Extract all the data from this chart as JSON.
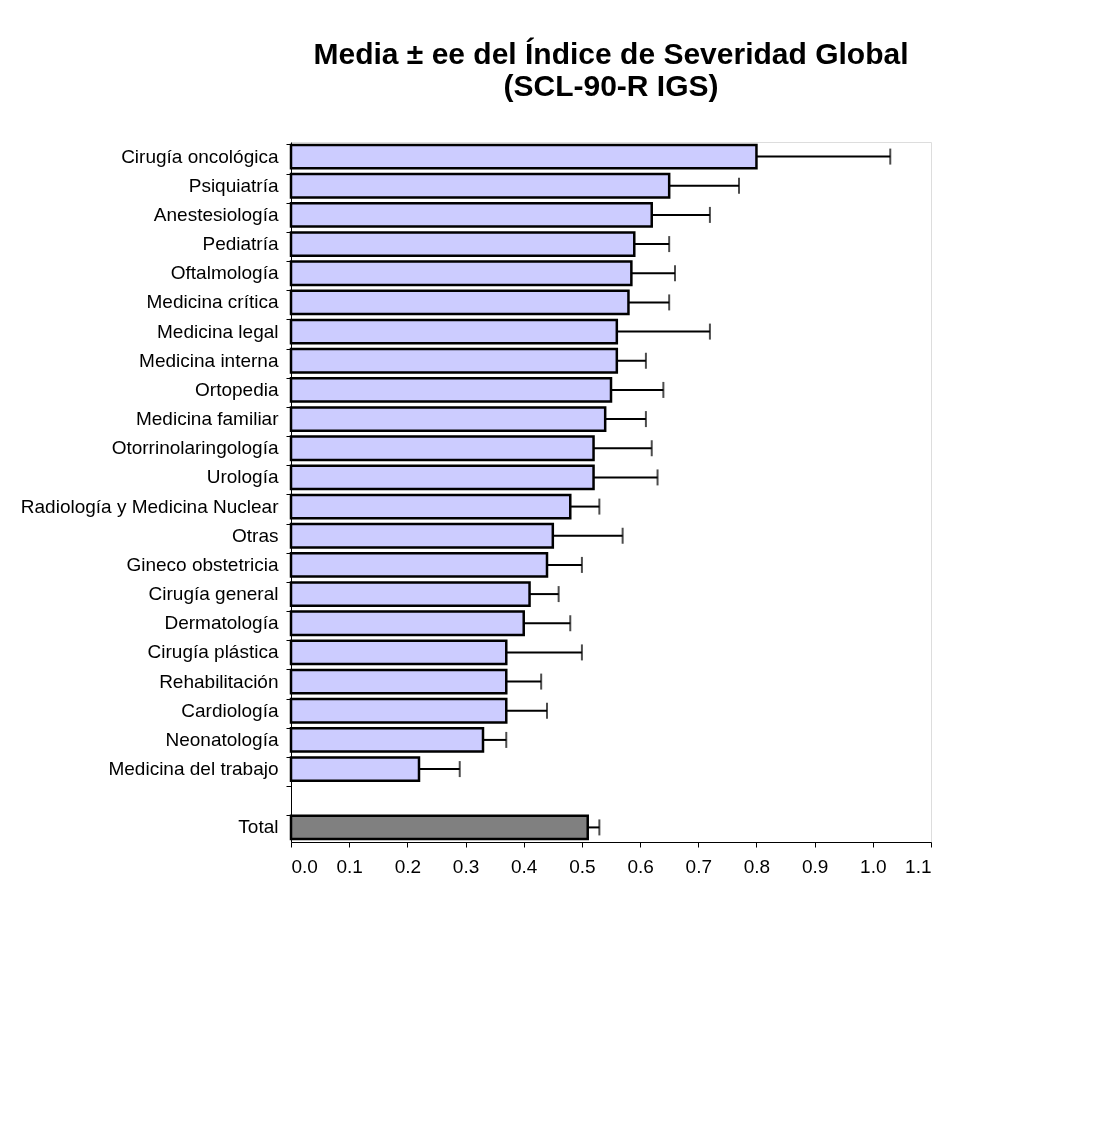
{
  "chart_data": {
    "type": "bar",
    "orientation": "horizontal",
    "title": "Media ± ee del Índice de Severidad Global\n(SCL-90-R     IGS)",
    "categories": [
      "Cirugía oncológica",
      "Psiquiatría",
      "Anestesiología",
      "Pediatría",
      "Oftalmología",
      "Medicina crítica",
      "Medicina legal",
      "Medicina interna",
      "Ortopedia",
      "Medicina familiar",
      "Otorrinolaringología",
      "Urología",
      "Radiología y Medicina Nuclear",
      "Otras",
      "Gineco obstetricia",
      "Cirugía general",
      "Dermatología",
      "Cirugía plástica",
      "Rehabilitación",
      "Cardiología",
      "Neonatología",
      "Medicina del trabajo",
      null,
      "Total"
    ],
    "values": [
      0.8,
      0.65,
      0.62,
      0.59,
      0.585,
      0.58,
      0.56,
      0.56,
      0.55,
      0.54,
      0.52,
      0.52,
      0.48,
      0.45,
      0.44,
      0.41,
      0.4,
      0.37,
      0.37,
      0.37,
      0.33,
      0.22,
      null,
      0.51
    ],
    "errors": [
      [
        0.8,
        1.03
      ],
      [
        0.65,
        0.77
      ],
      [
        0.62,
        0.72
      ],
      [
        0.59,
        0.65
      ],
      [
        0.585,
        0.66
      ],
      [
        0.58,
        0.65
      ],
      [
        0.56,
        0.72
      ],
      [
        0.56,
        0.61
      ],
      [
        0.55,
        0.64
      ],
      [
        0.54,
        0.61
      ],
      [
        0.52,
        0.62
      ],
      [
        0.52,
        0.63
      ],
      [
        0.48,
        0.53
      ],
      [
        0.45,
        0.57
      ],
      [
        0.44,
        0.5
      ],
      [
        0.41,
        0.46
      ],
      [
        0.4,
        0.48
      ],
      [
        0.37,
        0.5
      ],
      [
        0.37,
        0.43
      ],
      [
        0.37,
        0.44
      ],
      [
        0.33,
        0.37
      ],
      [
        0.22,
        0.29
      ],
      null,
      [
        0.51,
        0.53
      ]
    ],
    "colors": [
      "#ccccff",
      "#ccccff",
      "#ccccff",
      "#ccccff",
      "#ccccff",
      "#ccccff",
      "#ccccff",
      "#ccccff",
      "#ccccff",
      "#ccccff",
      "#ccccff",
      "#ccccff",
      "#ccccff",
      "#ccccff",
      "#ccccff",
      "#ccccff",
      "#ccccff",
      "#ccccff",
      "#ccccff",
      "#ccccff",
      "#ccccff",
      "#ccccff",
      "#ccccff",
      "#808080"
    ],
    "xlim": [
      0,
      1.1
    ],
    "xticks": [
      {
        "value": 0,
        "label": "0.0"
      },
      0.1,
      0.2,
      0.3,
      0.4,
      0.5,
      0.6,
      0.7,
      0.8,
      0.9,
      {
        "value": 1,
        "label": "1.0"
      },
      1.1
    ],
    "grid": false
  }
}
